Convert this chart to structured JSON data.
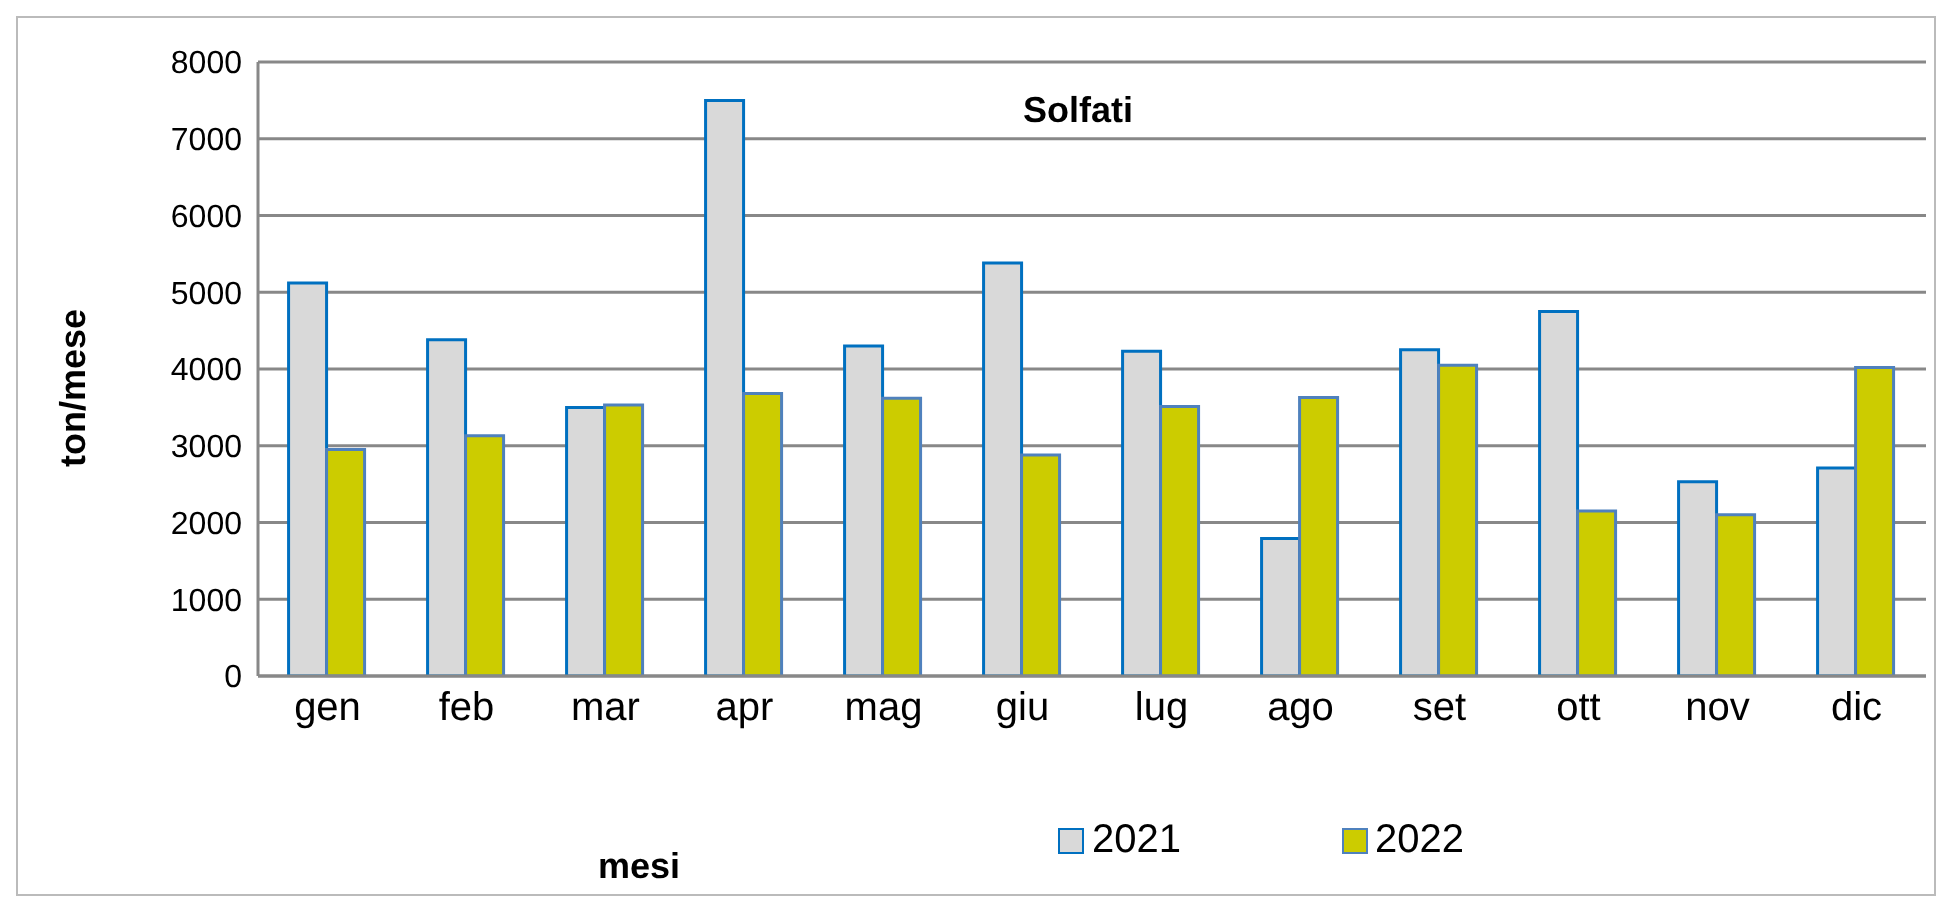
{
  "chart_data": {
    "type": "bar",
    "title": "Solfati",
    "xlabel": "mesi",
    "ylabel": "ton/mese",
    "categories": [
      "gen",
      "feb",
      "mar",
      "apr",
      "mag",
      "giu",
      "lug",
      "ago",
      "set",
      "ott",
      "nov",
      "dic"
    ],
    "series": [
      {
        "name": "2021",
        "color": "#d9d9d9",
        "values": [
          5120,
          4380,
          3500,
          7500,
          4300,
          5380,
          4230,
          1790,
          4250,
          4750,
          2530,
          2710
        ]
      },
      {
        "name": "2022",
        "color": "#cccc00",
        "values": [
          2950,
          3130,
          3530,
          3680,
          3620,
          2880,
          3510,
          3630,
          4050,
          2150,
          2100,
          4020
        ]
      }
    ],
    "ylim": [
      0,
      8000
    ],
    "yticks": [
      0,
      1000,
      2000,
      3000,
      4000,
      5000,
      6000,
      7000,
      8000
    ],
    "grid": "y",
    "legend": "bottom"
  }
}
